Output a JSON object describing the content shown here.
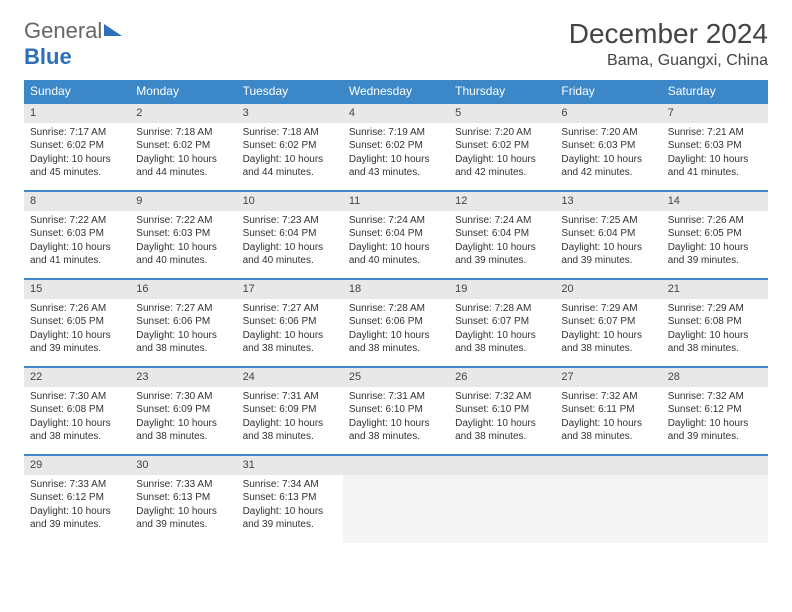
{
  "brand": {
    "part1": "General",
    "part2": "Blue"
  },
  "header": {
    "month_title": "December 2024",
    "location": "Bama, Guangxi, China"
  },
  "colors": {
    "header_bg": "#3b87c8",
    "header_text": "#ffffff",
    "row_border": "#3b87c8",
    "daynum_bg": "#e8e8e8",
    "body_bg": "#ffffff",
    "logo_blue": "#2c6fbb"
  },
  "day_headers": [
    "Sunday",
    "Monday",
    "Tuesday",
    "Wednesday",
    "Thursday",
    "Friday",
    "Saturday"
  ],
  "weeks": [
    [
      {
        "n": "1",
        "sr": "7:17 AM",
        "ss": "6:02 PM",
        "dl": "10 hours and 45 minutes."
      },
      {
        "n": "2",
        "sr": "7:18 AM",
        "ss": "6:02 PM",
        "dl": "10 hours and 44 minutes."
      },
      {
        "n": "3",
        "sr": "7:18 AM",
        "ss": "6:02 PM",
        "dl": "10 hours and 44 minutes."
      },
      {
        "n": "4",
        "sr": "7:19 AM",
        "ss": "6:02 PM",
        "dl": "10 hours and 43 minutes."
      },
      {
        "n": "5",
        "sr": "7:20 AM",
        "ss": "6:02 PM",
        "dl": "10 hours and 42 minutes."
      },
      {
        "n": "6",
        "sr": "7:20 AM",
        "ss": "6:03 PM",
        "dl": "10 hours and 42 minutes."
      },
      {
        "n": "7",
        "sr": "7:21 AM",
        "ss": "6:03 PM",
        "dl": "10 hours and 41 minutes."
      }
    ],
    [
      {
        "n": "8",
        "sr": "7:22 AM",
        "ss": "6:03 PM",
        "dl": "10 hours and 41 minutes."
      },
      {
        "n": "9",
        "sr": "7:22 AM",
        "ss": "6:03 PM",
        "dl": "10 hours and 40 minutes."
      },
      {
        "n": "10",
        "sr": "7:23 AM",
        "ss": "6:04 PM",
        "dl": "10 hours and 40 minutes."
      },
      {
        "n": "11",
        "sr": "7:24 AM",
        "ss": "6:04 PM",
        "dl": "10 hours and 40 minutes."
      },
      {
        "n": "12",
        "sr": "7:24 AM",
        "ss": "6:04 PM",
        "dl": "10 hours and 39 minutes."
      },
      {
        "n": "13",
        "sr": "7:25 AM",
        "ss": "6:04 PM",
        "dl": "10 hours and 39 minutes."
      },
      {
        "n": "14",
        "sr": "7:26 AM",
        "ss": "6:05 PM",
        "dl": "10 hours and 39 minutes."
      }
    ],
    [
      {
        "n": "15",
        "sr": "7:26 AM",
        "ss": "6:05 PM",
        "dl": "10 hours and 39 minutes."
      },
      {
        "n": "16",
        "sr": "7:27 AM",
        "ss": "6:06 PM",
        "dl": "10 hours and 38 minutes."
      },
      {
        "n": "17",
        "sr": "7:27 AM",
        "ss": "6:06 PM",
        "dl": "10 hours and 38 minutes."
      },
      {
        "n": "18",
        "sr": "7:28 AM",
        "ss": "6:06 PM",
        "dl": "10 hours and 38 minutes."
      },
      {
        "n": "19",
        "sr": "7:28 AM",
        "ss": "6:07 PM",
        "dl": "10 hours and 38 minutes."
      },
      {
        "n": "20",
        "sr": "7:29 AM",
        "ss": "6:07 PM",
        "dl": "10 hours and 38 minutes."
      },
      {
        "n": "21",
        "sr": "7:29 AM",
        "ss": "6:08 PM",
        "dl": "10 hours and 38 minutes."
      }
    ],
    [
      {
        "n": "22",
        "sr": "7:30 AM",
        "ss": "6:08 PM",
        "dl": "10 hours and 38 minutes."
      },
      {
        "n": "23",
        "sr": "7:30 AM",
        "ss": "6:09 PM",
        "dl": "10 hours and 38 minutes."
      },
      {
        "n": "24",
        "sr": "7:31 AM",
        "ss": "6:09 PM",
        "dl": "10 hours and 38 minutes."
      },
      {
        "n": "25",
        "sr": "7:31 AM",
        "ss": "6:10 PM",
        "dl": "10 hours and 38 minutes."
      },
      {
        "n": "26",
        "sr": "7:32 AM",
        "ss": "6:10 PM",
        "dl": "10 hours and 38 minutes."
      },
      {
        "n": "27",
        "sr": "7:32 AM",
        "ss": "6:11 PM",
        "dl": "10 hours and 38 minutes."
      },
      {
        "n": "28",
        "sr": "7:32 AM",
        "ss": "6:12 PM",
        "dl": "10 hours and 39 minutes."
      }
    ],
    [
      {
        "n": "29",
        "sr": "7:33 AM",
        "ss": "6:12 PM",
        "dl": "10 hours and 39 minutes."
      },
      {
        "n": "30",
        "sr": "7:33 AM",
        "ss": "6:13 PM",
        "dl": "10 hours and 39 minutes."
      },
      {
        "n": "31",
        "sr": "7:34 AM",
        "ss": "6:13 PM",
        "dl": "10 hours and 39 minutes."
      },
      null,
      null,
      null,
      null
    ]
  ],
  "labels": {
    "sunrise": "Sunrise: ",
    "sunset": "Sunset: ",
    "daylight": "Daylight: "
  }
}
